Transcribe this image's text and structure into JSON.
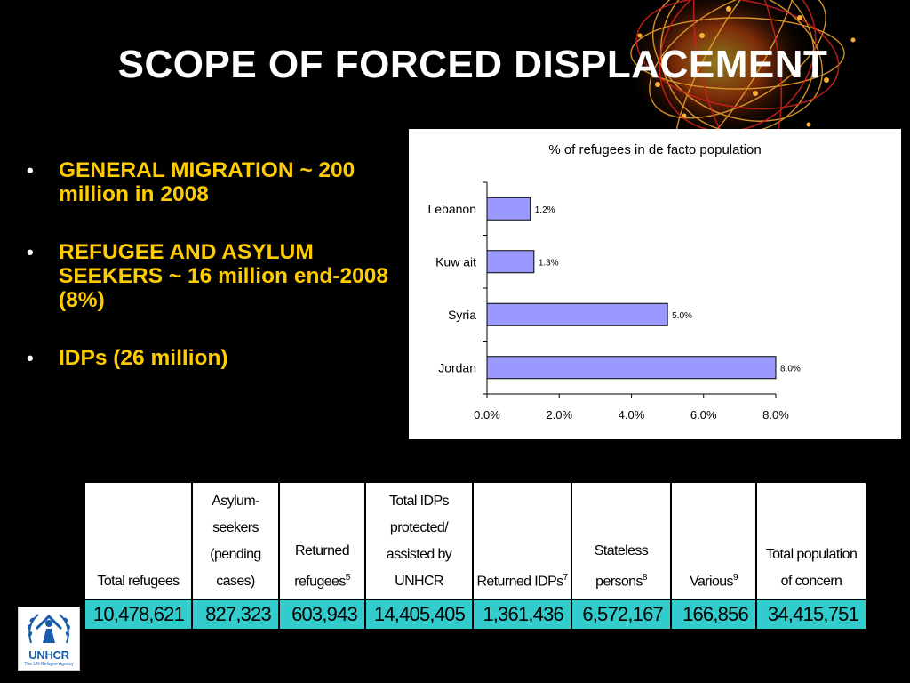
{
  "slide": {
    "title": "SCOPE OF FORCED DISPLACEMENT",
    "bullets": [
      "GENERAL MIGRATION ~ 200 million in 2008",
      "REFUGEE AND ASYLUM SEEKERS ~ 16 million end-2008 (8%)",
      "IDPs (26 million)"
    ]
  },
  "chart_data": {
    "type": "bar",
    "orientation": "horizontal",
    "title": "% of refugees in de facto population",
    "categories": [
      "Lebanon",
      "Kuw ait",
      "Syria",
      "Jordan"
    ],
    "values": [
      1.2,
      1.3,
      5.0,
      8.0
    ],
    "data_labels": [
      "1.2%",
      "1.3%",
      "5.0%",
      "8.0%"
    ],
    "xlim": [
      0,
      8
    ],
    "x_ticks": [
      "0.0%",
      "2.0%",
      "4.0%",
      "6.0%",
      "8.0%"
    ],
    "xlabel": "",
    "ylabel": "",
    "grid": false,
    "bar_color": "#9999ff",
    "bar_edge_color": "#000000"
  },
  "table": {
    "headers": [
      {
        "text": "Total refugees",
        "sup": ""
      },
      {
        "text": "Asylum-seekers (pending cases)",
        "sup": ""
      },
      {
        "text": "Returned refugees",
        "sup": "5"
      },
      {
        "text": "Total IDPs protected/ assisted by UNHCR",
        "sup": ""
      },
      {
        "text": "Returned IDPs",
        "sup": "7"
      },
      {
        "text": "Stateless persons",
        "sup": "8"
      },
      {
        "text": "Various",
        "sup": "9"
      },
      {
        "text": "Total population of concern",
        "sup": ""
      }
    ],
    "values": [
      "10,478,621",
      "827,323",
      "603,943",
      "14,405,405",
      "1,361,436",
      "6,572,167",
      "166,856",
      "34,415,751"
    ],
    "value_row_color": "#33cccc"
  },
  "logo": {
    "name": "UNHCR",
    "tagline": "The UN Refugee Agency",
    "color": "#1a5eab"
  }
}
